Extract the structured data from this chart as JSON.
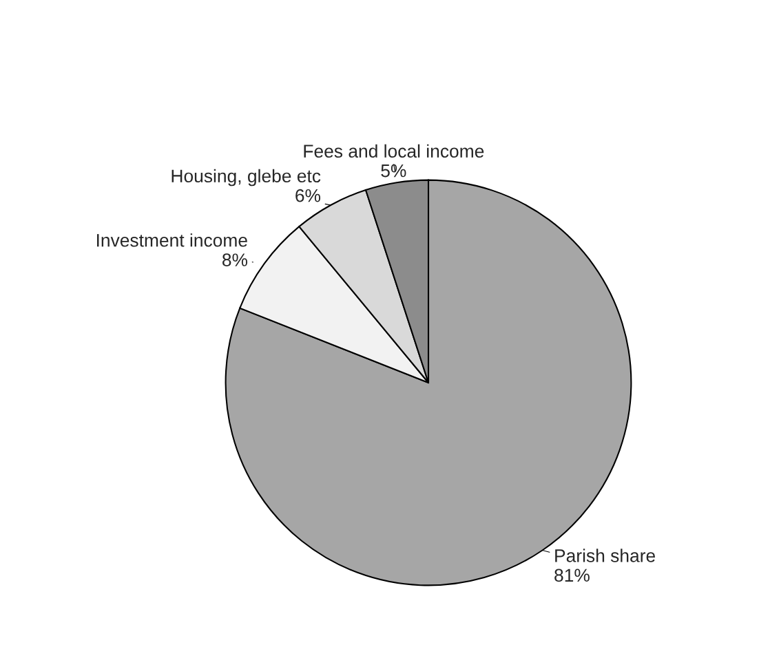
{
  "chart_data": {
    "type": "pie",
    "categories": [
      "Parish share",
      "Investment income",
      "Housing, glebe etc",
      "Fees and local income"
    ],
    "values": [
      81,
      8,
      6,
      5
    ],
    "value_labels": [
      "81%",
      "8%",
      "6%",
      "5%"
    ],
    "colors": [
      "#a6a6a6",
      "#f2f2f2",
      "#d9d9d9",
      "#8c8c8c"
    ],
    "legend": false
  }
}
